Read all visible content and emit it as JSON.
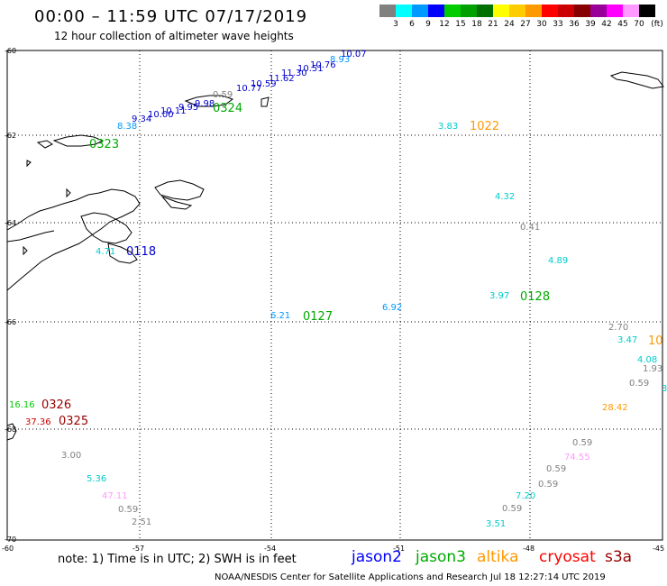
{
  "header": {
    "title": "00:00 – 11:59 UTC 07/17/2019",
    "subtitle": "12 hour collection of altimeter wave heights"
  },
  "colorbar": {
    "unit": "(ft)",
    "bins": [
      {
        "label": "3",
        "color": "#808080"
      },
      {
        "label": "6",
        "color": "#00ffff"
      },
      {
        "label": "9",
        "color": "#0099ff"
      },
      {
        "label": "12",
        "color": "#0000ff"
      },
      {
        "label": "15",
        "color": "#00cc00"
      },
      {
        "label": "18",
        "color": "#00a000"
      },
      {
        "label": "21",
        "color": "#007000"
      },
      {
        "label": "24",
        "color": "#ffff00"
      },
      {
        "label": "27",
        "color": "#ffcc00"
      },
      {
        "label": "30",
        "color": "#ff9900"
      },
      {
        "label": "33",
        "color": "#ff0000"
      },
      {
        "label": "36",
        "color": "#cc0000"
      },
      {
        "label": "39",
        "color": "#880000"
      },
      {
        "label": "42",
        "color": "#990099"
      },
      {
        "label": "45",
        "color": "#ff00ff"
      },
      {
        "label": "70",
        "color": "#ff99ff"
      },
      {
        "label": "",
        "color": "#000000"
      }
    ]
  },
  "axes": {
    "lat_labels": [
      "-60",
      "-62",
      "-64",
      "-66",
      "-68",
      "-70"
    ],
    "lon_labels": [
      "-60",
      "-57",
      "-54",
      "-51",
      "-48",
      "-45"
    ]
  },
  "observations": [
    {
      "text": "10.07",
      "color": "#0000cc"
    },
    {
      "text": "8.93",
      "color": "#0099ff"
    },
    {
      "text": "10.76",
      "color": "#0000cc"
    },
    {
      "text": "10.51",
      "color": "#0000cc"
    },
    {
      "text": "11.30",
      "color": "#0000cc"
    },
    {
      "text": "11.62",
      "color": "#0000cc"
    },
    {
      "text": "10.59",
      "color": "#0000cc"
    },
    {
      "text": "10.77",
      "color": "#0000cc"
    },
    {
      "text": "0.59",
      "color": "#808080"
    },
    {
      "text": "9.98",
      "color": "#0000cc"
    },
    {
      "text": "9.95",
      "color": "#0000cc"
    },
    {
      "text": "10.11",
      "color": "#0000cc"
    },
    {
      "text": "10.00",
      "color": "#0000cc"
    },
    {
      "text": "9.34",
      "color": "#0000cc"
    },
    {
      "text": "8.38",
      "color": "#0099ff"
    },
    {
      "text": "3.83",
      "color": "#00cccc"
    },
    {
      "text": "4.32",
      "color": "#00cccc"
    },
    {
      "text": "0.41",
      "color": "#808080"
    },
    {
      "text": "4.89",
      "color": "#00cccc"
    },
    {
      "text": "4.71",
      "color": "#00cccc"
    },
    {
      "text": "3.97",
      "color": "#00cccc"
    },
    {
      "text": "6.92",
      "color": "#0099ff"
    },
    {
      "text": "6.21",
      "color": "#0099ff"
    },
    {
      "text": "2.70",
      "color": "#808080"
    },
    {
      "text": "3.47",
      "color": "#00cccc"
    },
    {
      "text": "4.08",
      "color": "#00cccc"
    },
    {
      "text": "1.93",
      "color": "#808080"
    },
    {
      "text": "0.59",
      "color": "#808080"
    },
    {
      "text": "3",
      "color": "#00cccc"
    },
    {
      "text": "28.42",
      "color": "#ff9900"
    },
    {
      "text": "16.16",
      "color": "#00cc00"
    },
    {
      "text": "37.36",
      "color": "#cc0000"
    },
    {
      "text": "3.00",
      "color": "#808080"
    },
    {
      "text": "5.36",
      "color": "#00cccc"
    },
    {
      "text": "47.11",
      "color": "#ff99ff"
    },
    {
      "text": "0.59",
      "color": "#808080"
    },
    {
      "text": "2.51",
      "color": "#808080"
    },
    {
      "text": "0.59",
      "color": "#808080"
    },
    {
      "text": "74.55",
      "color": "#ff99ff"
    },
    {
      "text": "0.59",
      "color": "#808080"
    },
    {
      "text": "0.59",
      "color": "#808080"
    },
    {
      "text": "7.20",
      "color": "#00cccc"
    },
    {
      "text": "0.59",
      "color": "#808080"
    },
    {
      "text": "3.51",
      "color": "#00cccc"
    }
  ],
  "passes": [
    {
      "text": "0324",
      "color": "#00aa00"
    },
    {
      "text": "0323",
      "color": "#00aa00"
    },
    {
      "text": "1022",
      "color": "#ff9900"
    },
    {
      "text": "0118",
      "color": "#0000cc"
    },
    {
      "text": "0128",
      "color": "#00aa00"
    },
    {
      "text": "0127",
      "color": "#00aa00"
    },
    {
      "text": "0326",
      "color": "#990000"
    },
    {
      "text": "0325",
      "color": "#990000"
    },
    {
      "text": "10",
      "color": "#ff9900"
    }
  ],
  "footer": {
    "note": "note: 1) Time is in UTC; 2) SWH is in feet",
    "satellites": [
      {
        "name": "jason2",
        "color": "#0000ff"
      },
      {
        "name": "jason3",
        "color": "#00aa00"
      },
      {
        "name": "altika",
        "color": "#ff9900"
      },
      {
        "name": "cryosat",
        "color": "#ff0000"
      },
      {
        "name": "s3a",
        "color": "#990000"
      }
    ],
    "credit": "NOAA/NESDIS Center for Satellite Applications and Research    Jul 18 12:27:14 UTC 2019"
  }
}
